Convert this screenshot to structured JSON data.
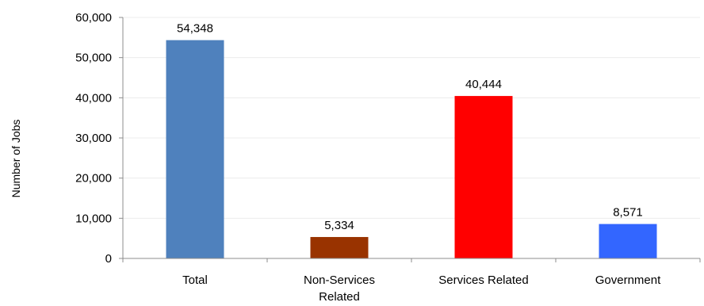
{
  "chart_data": {
    "type": "bar",
    "title": "",
    "xlabel": "",
    "ylabel": "Number of Jobs",
    "ylim": [
      0,
      60000
    ],
    "yticks": [
      0,
      10000,
      20000,
      30000,
      40000,
      50000,
      60000
    ],
    "ytick_labels": [
      "0",
      "10,000",
      "20,000",
      "30,000",
      "40,000",
      "50,000",
      "60,000"
    ],
    "categories": [
      "Total",
      "Non-Services Related",
      "Services Related",
      "Government"
    ],
    "category_lines": [
      [
        "Total"
      ],
      [
        "Non-Services",
        "Related"
      ],
      [
        "Services Related"
      ],
      [
        "Government"
      ]
    ],
    "values": [
      54348,
      5334,
      40444,
      8571
    ],
    "value_labels": [
      "54,348",
      "5,334",
      "40,444",
      "8,571"
    ],
    "colors": [
      "#4F81BD",
      "#993300",
      "#FF0000",
      "#3366FF"
    ],
    "grid": true,
    "legend": "none"
  }
}
